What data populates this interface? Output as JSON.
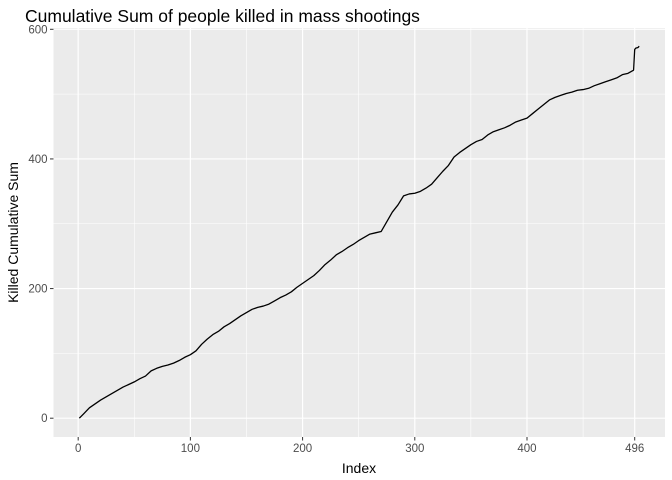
{
  "chart_data": {
    "type": "line",
    "title": "Cumulative Sum of people killed in mass shootings",
    "xlabel": "Index",
    "ylabel": "Killed Cumulative Sum",
    "xlim": [
      -22,
      523
    ],
    "ylim": [
      -29,
      602
    ],
    "x_ticks": [
      0,
      100,
      200,
      300,
      400,
      496
    ],
    "x_minor_ticks": [
      50,
      150,
      250,
      350,
      450
    ],
    "y_ticks": [
      0,
      200,
      400,
      600
    ],
    "y_minor_ticks": [
      100,
      300,
      500
    ],
    "grid": true,
    "panel_color": "#ebebeb",
    "grid_color": "#ffffff",
    "line_color": "#000000",
    "series": [
      {
        "x": [
          1,
          5,
          10,
          15,
          20,
          25,
          30,
          35,
          40,
          45,
          50,
          55,
          60,
          65,
          70,
          75,
          80,
          85,
          90,
          95,
          100,
          105,
          110,
          115,
          120,
          125,
          130,
          135,
          140,
          145,
          150,
          155,
          160,
          165,
          170,
          175,
          180,
          185,
          190,
          195,
          200,
          205,
          210,
          215,
          220,
          225,
          230,
          235,
          240,
          245,
          250,
          255,
          260,
          265,
          270,
          275,
          280,
          285,
          290,
          295,
          300,
          305,
          310,
          315,
          320,
          325,
          330,
          335,
          340,
          345,
          350,
          355,
          360,
          365,
          370,
          375,
          380,
          385,
          390,
          395,
          400,
          405,
          410,
          415,
          420,
          425,
          430,
          435,
          440,
          445,
          450,
          455,
          460,
          465,
          470,
          475,
          480,
          485,
          490,
          495,
          496,
          497,
          499,
          500
        ],
        "y": [
          0,
          7,
          16,
          22,
          28,
          33,
          38,
          43,
          48,
          52,
          56,
          61,
          65,
          73,
          77,
          80,
          82,
          85,
          89,
          94,
          98,
          104,
          114,
          122,
          129,
          134,
          141,
          146,
          152,
          158,
          163,
          168,
          171,
          173,
          176,
          181,
          186,
          190,
          195,
          202,
          208,
          214,
          220,
          228,
          237,
          244,
          252,
          257,
          263,
          268,
          274,
          279,
          284,
          286,
          288,
          303,
          318,
          329,
          343,
          346,
          347,
          350,
          355,
          361,
          371,
          381,
          390,
          403,
          410,
          416,
          422,
          427,
          430,
          437,
          442,
          445,
          448,
          452,
          457,
          460,
          463,
          470,
          477,
          484,
          491,
          495,
          498,
          501,
          503,
          506,
          507,
          509,
          513,
          516,
          519,
          522,
          525,
          530,
          532,
          537,
          569,
          571,
          572,
          574
        ]
      }
    ]
  }
}
